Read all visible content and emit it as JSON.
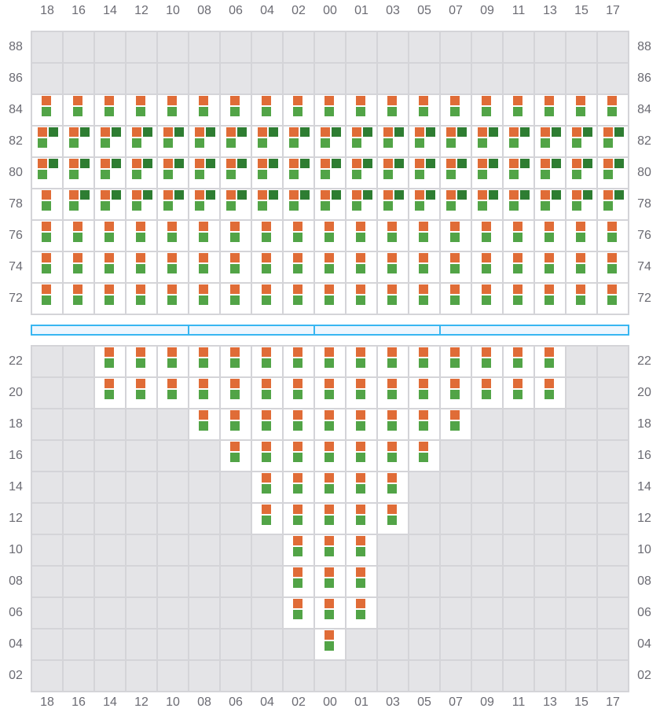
{
  "columns": [
    "18",
    "16",
    "14",
    "12",
    "10",
    "08",
    "06",
    "04",
    "02",
    "00",
    "01",
    "03",
    "05",
    "07",
    "09",
    "11",
    "13",
    "15",
    "17"
  ],
  "colors": {
    "slot_a": "#e06c37",
    "slot_b": "#2e7d32",
    "slot_c": "#52a447",
    "empty": "#e4e4e7",
    "divider": "#38b6f1"
  },
  "upper_rows": [
    {
      "label": "88",
      "cells": [
        0,
        0,
        0,
        0,
        0,
        0,
        0,
        0,
        0,
        0,
        0,
        0,
        0,
        0,
        0,
        0,
        0,
        0,
        0
      ]
    },
    {
      "label": "86",
      "cells": [
        0,
        0,
        0,
        0,
        0,
        0,
        0,
        0,
        0,
        0,
        0,
        0,
        0,
        0,
        0,
        0,
        0,
        0,
        0
      ]
    },
    {
      "label": "84",
      "cells": [
        1,
        1,
        1,
        1,
        1,
        1,
        1,
        1,
        1,
        1,
        1,
        1,
        1,
        1,
        1,
        1,
        1,
        1,
        1
      ]
    },
    {
      "label": "82",
      "cells": [
        2,
        2,
        2,
        2,
        2,
        2,
        2,
        2,
        2,
        2,
        2,
        2,
        2,
        2,
        2,
        2,
        2,
        2,
        2
      ]
    },
    {
      "label": "80",
      "cells": [
        2,
        2,
        2,
        2,
        2,
        2,
        2,
        2,
        2,
        2,
        2,
        2,
        2,
        2,
        2,
        2,
        2,
        2,
        2
      ]
    },
    {
      "label": "78",
      "cells": [
        1,
        2,
        2,
        2,
        2,
        2,
        2,
        2,
        2,
        2,
        2,
        2,
        2,
        2,
        2,
        2,
        2,
        2,
        2
      ]
    },
    {
      "label": "76",
      "cells": [
        1,
        1,
        1,
        1,
        1,
        1,
        1,
        1,
        1,
        1,
        1,
        1,
        1,
        1,
        1,
        1,
        1,
        1,
        1
      ]
    },
    {
      "label": "74",
      "cells": [
        1,
        1,
        1,
        1,
        1,
        1,
        1,
        1,
        1,
        1,
        1,
        1,
        1,
        1,
        1,
        1,
        1,
        1,
        1
      ]
    },
    {
      "label": "72",
      "cells": [
        1,
        1,
        1,
        1,
        1,
        1,
        1,
        1,
        1,
        1,
        1,
        1,
        1,
        1,
        1,
        1,
        1,
        1,
        1
      ]
    }
  ],
  "divider_segments": [
    [
      0,
      5
    ],
    [
      5,
      9
    ],
    [
      9,
      13
    ],
    [
      13,
      19
    ]
  ],
  "lower_rows": [
    {
      "label": "22",
      "cells": [
        0,
        0,
        1,
        1,
        1,
        1,
        1,
        1,
        1,
        1,
        1,
        1,
        1,
        1,
        1,
        1,
        1,
        0,
        0
      ]
    },
    {
      "label": "20",
      "cells": [
        0,
        0,
        1,
        1,
        1,
        1,
        1,
        1,
        1,
        1,
        1,
        1,
        1,
        1,
        1,
        1,
        1,
        0,
        0
      ]
    },
    {
      "label": "18",
      "cells": [
        0,
        0,
        0,
        0,
        0,
        1,
        1,
        1,
        1,
        1,
        1,
        1,
        1,
        1,
        0,
        0,
        0,
        0,
        0
      ]
    },
    {
      "label": "16",
      "cells": [
        0,
        0,
        0,
        0,
        0,
        0,
        1,
        1,
        1,
        1,
        1,
        1,
        1,
        0,
        0,
        0,
        0,
        0,
        0
      ]
    },
    {
      "label": "14",
      "cells": [
        0,
        0,
        0,
        0,
        0,
        0,
        0,
        1,
        1,
        1,
        1,
        1,
        0,
        0,
        0,
        0,
        0,
        0,
        0
      ]
    },
    {
      "label": "12",
      "cells": [
        0,
        0,
        0,
        0,
        0,
        0,
        0,
        1,
        1,
        1,
        1,
        1,
        0,
        0,
        0,
        0,
        0,
        0,
        0
      ]
    },
    {
      "label": "10",
      "cells": [
        0,
        0,
        0,
        0,
        0,
        0,
        0,
        0,
        1,
        1,
        1,
        0,
        0,
        0,
        0,
        0,
        0,
        0,
        0
      ]
    },
    {
      "label": "08",
      "cells": [
        0,
        0,
        0,
        0,
        0,
        0,
        0,
        0,
        1,
        1,
        1,
        0,
        0,
        0,
        0,
        0,
        0,
        0,
        0
      ]
    },
    {
      "label": "06",
      "cells": [
        0,
        0,
        0,
        0,
        0,
        0,
        0,
        0,
        1,
        1,
        1,
        0,
        0,
        0,
        0,
        0,
        0,
        0,
        0
      ]
    },
    {
      "label": "04",
      "cells": [
        0,
        0,
        0,
        0,
        0,
        0,
        0,
        0,
        0,
        1,
        0,
        0,
        0,
        0,
        0,
        0,
        0,
        0,
        0
      ]
    },
    {
      "label": "02",
      "cells": [
        0,
        0,
        0,
        0,
        0,
        0,
        0,
        0,
        0,
        0,
        0,
        0,
        0,
        0,
        0,
        0,
        0,
        0,
        0
      ]
    }
  ]
}
